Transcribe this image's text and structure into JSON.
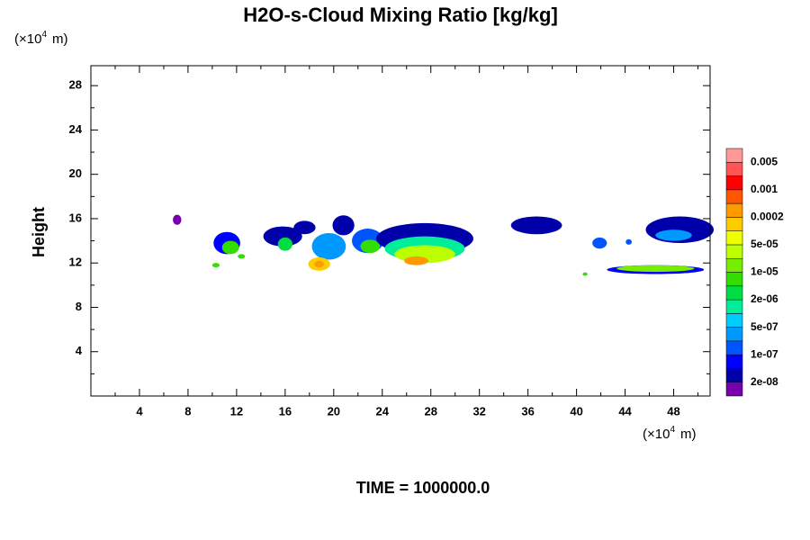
{
  "chart_data": {
    "type": "contour",
    "title": "H2O-s-Cloud Mixing Ratio [kg/kg]",
    "y_label": "Height",
    "y_unit": {
      "base": "(×10",
      "exponent": "4",
      "suffix": "m)"
    },
    "x_unit": {
      "base": "(×10",
      "exponent": "4",
      "suffix": "m)"
    },
    "footer": "TIME = 1000000.0",
    "xlim": [
      0,
      51
    ],
    "ylim": [
      0,
      29.8
    ],
    "xticks": [
      4,
      8,
      12,
      16,
      20,
      24,
      28,
      32,
      36,
      40,
      44,
      48
    ],
    "xminorticks": [
      2,
      6,
      10,
      14,
      18,
      22,
      26,
      30,
      34,
      38,
      42,
      46,
      50
    ],
    "yticks": [
      4,
      8,
      12,
      16,
      20,
      24,
      28
    ],
    "yminorticks": [
      2,
      6,
      10,
      14,
      18,
      22,
      26
    ],
    "colorbar_ticks": [
      {
        "value": 2e-08,
        "label": "2e-08"
      },
      {
        "value": 1e-07,
        "label": "1e-07"
      },
      {
        "value": 5e-07,
        "label": "5e-07"
      },
      {
        "value": 2e-06,
        "label": "2e-06"
      },
      {
        "value": 1e-05,
        "label": "1e-05"
      },
      {
        "value": 5e-05,
        "label": "5e-05"
      },
      0.0002,
      0.001,
      0.005
    ],
    "colors": [
      "#7700aa",
      "#0000aa",
      "#0000ff",
      "#0055ff",
      "#0099ff",
      "#00ccff",
      "#00ee99",
      "#00dd44",
      "#33dd00",
      "#77ee00",
      "#bbff00",
      "#eeff00",
      "#ffcc00",
      "#ff9900",
      "#ff5500",
      "#ff0000",
      "#ff5555",
      "#ff9999"
    ],
    "regions": [
      {
        "x": 7.1,
        "y": 15.9,
        "rx": 0.35,
        "ry": 0.45,
        "value": 1e-08
      },
      {
        "x": 11.2,
        "y": 13.8,
        "rx": 1.1,
        "ry": 1.0,
        "value": 5e-08
      },
      {
        "x": 11.5,
        "y": 13.4,
        "rx": 0.7,
        "ry": 0.6,
        "value": 5e-06
      },
      {
        "x": 10.3,
        "y": 11.8,
        "rx": 0.3,
        "ry": 0.2,
        "value": 5e-06
      },
      {
        "x": 12.4,
        "y": 12.6,
        "rx": 0.3,
        "ry": 0.2,
        "value": 5e-06
      },
      {
        "x": 15.8,
        "y": 14.4,
        "rx": 1.6,
        "ry": 0.9,
        "value": 3e-08
      },
      {
        "x": 16.0,
        "y": 13.7,
        "rx": 0.6,
        "ry": 0.6,
        "value": 3e-06
      },
      {
        "x": 17.6,
        "y": 15.2,
        "rx": 0.9,
        "ry": 0.6,
        "value": 3e-08
      },
      {
        "x": 19.6,
        "y": 13.5,
        "rx": 1.4,
        "ry": 1.2,
        "value": 4e-07
      },
      {
        "x": 18.8,
        "y": 11.9,
        "rx": 0.9,
        "ry": 0.6,
        "value": 0.0001
      },
      {
        "x": 18.8,
        "y": 11.9,
        "rx": 0.4,
        "ry": 0.3,
        "value": 0.0003
      },
      {
        "x": 20.8,
        "y": 15.4,
        "rx": 0.9,
        "ry": 0.9,
        "value": 3e-08
      },
      {
        "x": 22.8,
        "y": 14.0,
        "rx": 1.3,
        "ry": 1.1,
        "value": 2e-07
      },
      {
        "x": 23.0,
        "y": 13.5,
        "rx": 0.8,
        "ry": 0.6,
        "value": 5e-06
      },
      {
        "x": 27.5,
        "y": 14.2,
        "rx": 4.0,
        "ry": 1.4,
        "value": 3e-08
      },
      {
        "x": 27.5,
        "y": 13.3,
        "rx": 3.3,
        "ry": 1.1,
        "value": 1e-06
      },
      {
        "x": 27.5,
        "y": 12.8,
        "rx": 2.5,
        "ry": 0.8,
        "value": 3e-05
      },
      {
        "x": 26.8,
        "y": 12.2,
        "rx": 1.0,
        "ry": 0.4,
        "value": 0.0003
      },
      {
        "x": 36.7,
        "y": 15.4,
        "rx": 2.1,
        "ry": 0.8,
        "value": 3e-08
      },
      {
        "x": 41.9,
        "y": 13.8,
        "rx": 0.6,
        "ry": 0.5,
        "value": 2e-07
      },
      {
        "x": 44.3,
        "y": 13.9,
        "rx": 0.25,
        "ry": 0.25,
        "value": 1e-07
      },
      {
        "x": 48.5,
        "y": 15.0,
        "rx": 2.8,
        "ry": 1.2,
        "value": 3e-08
      },
      {
        "x": 48.0,
        "y": 14.5,
        "rx": 1.5,
        "ry": 0.5,
        "value": 3e-07
      },
      {
        "x": 40.7,
        "y": 11.0,
        "rx": 0.2,
        "ry": 0.15,
        "value": 5e-06
      },
      {
        "x": 46.5,
        "y": 11.4,
        "rx": 4.0,
        "ry": 0.4,
        "value": 5e-08
      },
      {
        "x": 46.5,
        "y": 11.5,
        "rx": 3.2,
        "ry": 0.3,
        "value": 2e-05
      }
    ]
  }
}
